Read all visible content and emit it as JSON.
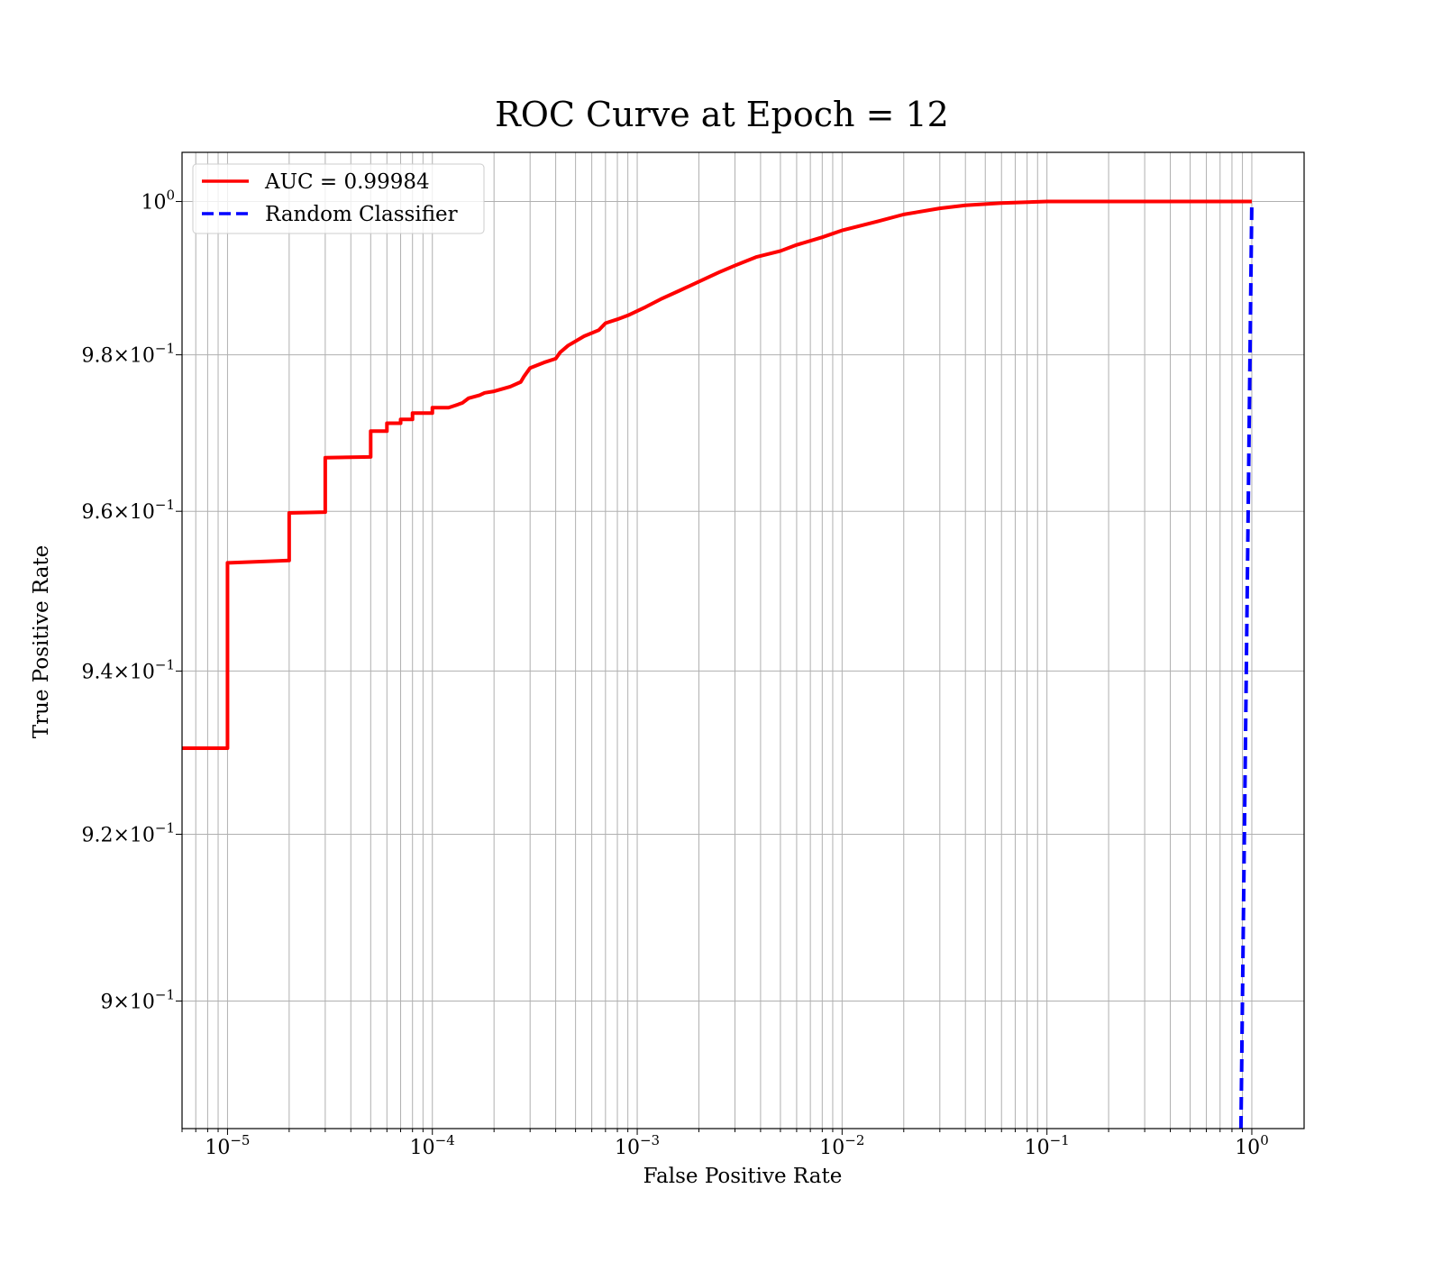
{
  "chart_data": {
    "type": "line",
    "title": "ROC Curve at Epoch = 12",
    "xlabel": "False Positive Rate",
    "ylabel": "True Positive Rate",
    "xscale": "log",
    "yscale": "log",
    "xlim": [
      6e-06,
      1.8
    ],
    "ylim": [
      0.885,
      1.0065
    ],
    "grid": true,
    "grid_which": "both",
    "legend_position": "top-left",
    "x_ticks": [
      {
        "value": 1e-05,
        "base": "10",
        "exp": "−5"
      },
      {
        "value": 0.0001,
        "base": "10",
        "exp": "−4"
      },
      {
        "value": 0.001,
        "base": "10",
        "exp": "−3"
      },
      {
        "value": 0.01,
        "base": "10",
        "exp": "−2"
      },
      {
        "value": 0.1,
        "base": "10",
        "exp": "−1"
      },
      {
        "value": 1,
        "base": "10",
        "exp": "0"
      }
    ],
    "y_ticks": [
      {
        "value": 0.9,
        "mantissa": "9",
        "base": "10",
        "exp": "−1",
        "times": "×"
      },
      {
        "value": 0.92,
        "mantissa": "9.2",
        "base": "10",
        "exp": "−1",
        "times": "×"
      },
      {
        "value": 0.94,
        "mantissa": "9.4",
        "base": "10",
        "exp": "−1",
        "times": "×"
      },
      {
        "value": 0.96,
        "mantissa": "9.6",
        "base": "10",
        "exp": "−1",
        "times": "×"
      },
      {
        "value": 0.98,
        "mantissa": "9.8",
        "base": "10",
        "exp": "−1",
        "times": "×"
      },
      {
        "value": 1.0,
        "mantissa": "",
        "base": "10",
        "exp": "0",
        "times": ""
      }
    ],
    "series": [
      {
        "name": "AUC = 0.99984",
        "color": "#ff0000",
        "style": "solid",
        "points": [
          [
            6e-06,
            0.9305
          ],
          [
            1e-05,
            0.9305
          ],
          [
            1e-05,
            0.9535
          ],
          [
            2e-05,
            0.9538
          ],
          [
            2e-05,
            0.9598
          ],
          [
            3e-05,
            0.9599
          ],
          [
            3e-05,
            0.9668
          ],
          [
            5e-05,
            0.9669
          ],
          [
            5e-05,
            0.9702
          ],
          [
            6e-05,
            0.9702
          ],
          [
            6e-05,
            0.9712
          ],
          [
            7e-05,
            0.9712
          ],
          [
            7e-05,
            0.9717
          ],
          [
            8e-05,
            0.9717
          ],
          [
            8e-05,
            0.9725
          ],
          [
            0.0001,
            0.9725
          ],
          [
            0.0001,
            0.9732
          ],
          [
            0.00012,
            0.9732
          ],
          [
            0.00013,
            0.9735
          ],
          [
            0.00014,
            0.9738
          ],
          [
            0.00015,
            0.9744
          ],
          [
            0.00017,
            0.9748
          ],
          [
            0.00018,
            0.9751
          ],
          [
            0.0002,
            0.9753
          ],
          [
            0.00024,
            0.9759
          ],
          [
            0.00027,
            0.9765
          ],
          [
            0.00028,
            0.9772
          ],
          [
            0.0003,
            0.9783
          ],
          [
            0.00035,
            0.979
          ],
          [
            0.0004,
            0.9795
          ],
          [
            0.00042,
            0.9803
          ],
          [
            0.00046,
            0.9812
          ],
          [
            0.00055,
            0.9824
          ],
          [
            0.00065,
            0.9832
          ],
          [
            0.0007,
            0.9841
          ],
          [
            0.0008,
            0.9846
          ],
          [
            0.0009,
            0.9851
          ],
          [
            0.0011,
            0.9862
          ],
          [
            0.0013,
            0.9872
          ],
          [
            0.0016,
            0.9883
          ],
          [
            0.002,
            0.9895
          ],
          [
            0.0025,
            0.9907
          ],
          [
            0.003,
            0.9916
          ],
          [
            0.0038,
            0.9927
          ],
          [
            0.005,
            0.9935
          ],
          [
            0.006,
            0.9943
          ],
          [
            0.008,
            0.9953
          ],
          [
            0.01,
            0.9962
          ],
          [
            0.015,
            0.9974
          ],
          [
            0.02,
            0.9983
          ],
          [
            0.03,
            0.9991
          ],
          [
            0.04,
            0.9995
          ],
          [
            0.06,
            0.9998
          ],
          [
            0.1,
            1.0
          ],
          [
            1.0,
            1.0
          ]
        ]
      },
      {
        "name": "Random Classifier",
        "color": "#0000ff",
        "style": "dashed",
        "points": [
          [
            0.885,
            0.885
          ],
          [
            1.0,
            1.0
          ]
        ]
      }
    ]
  }
}
